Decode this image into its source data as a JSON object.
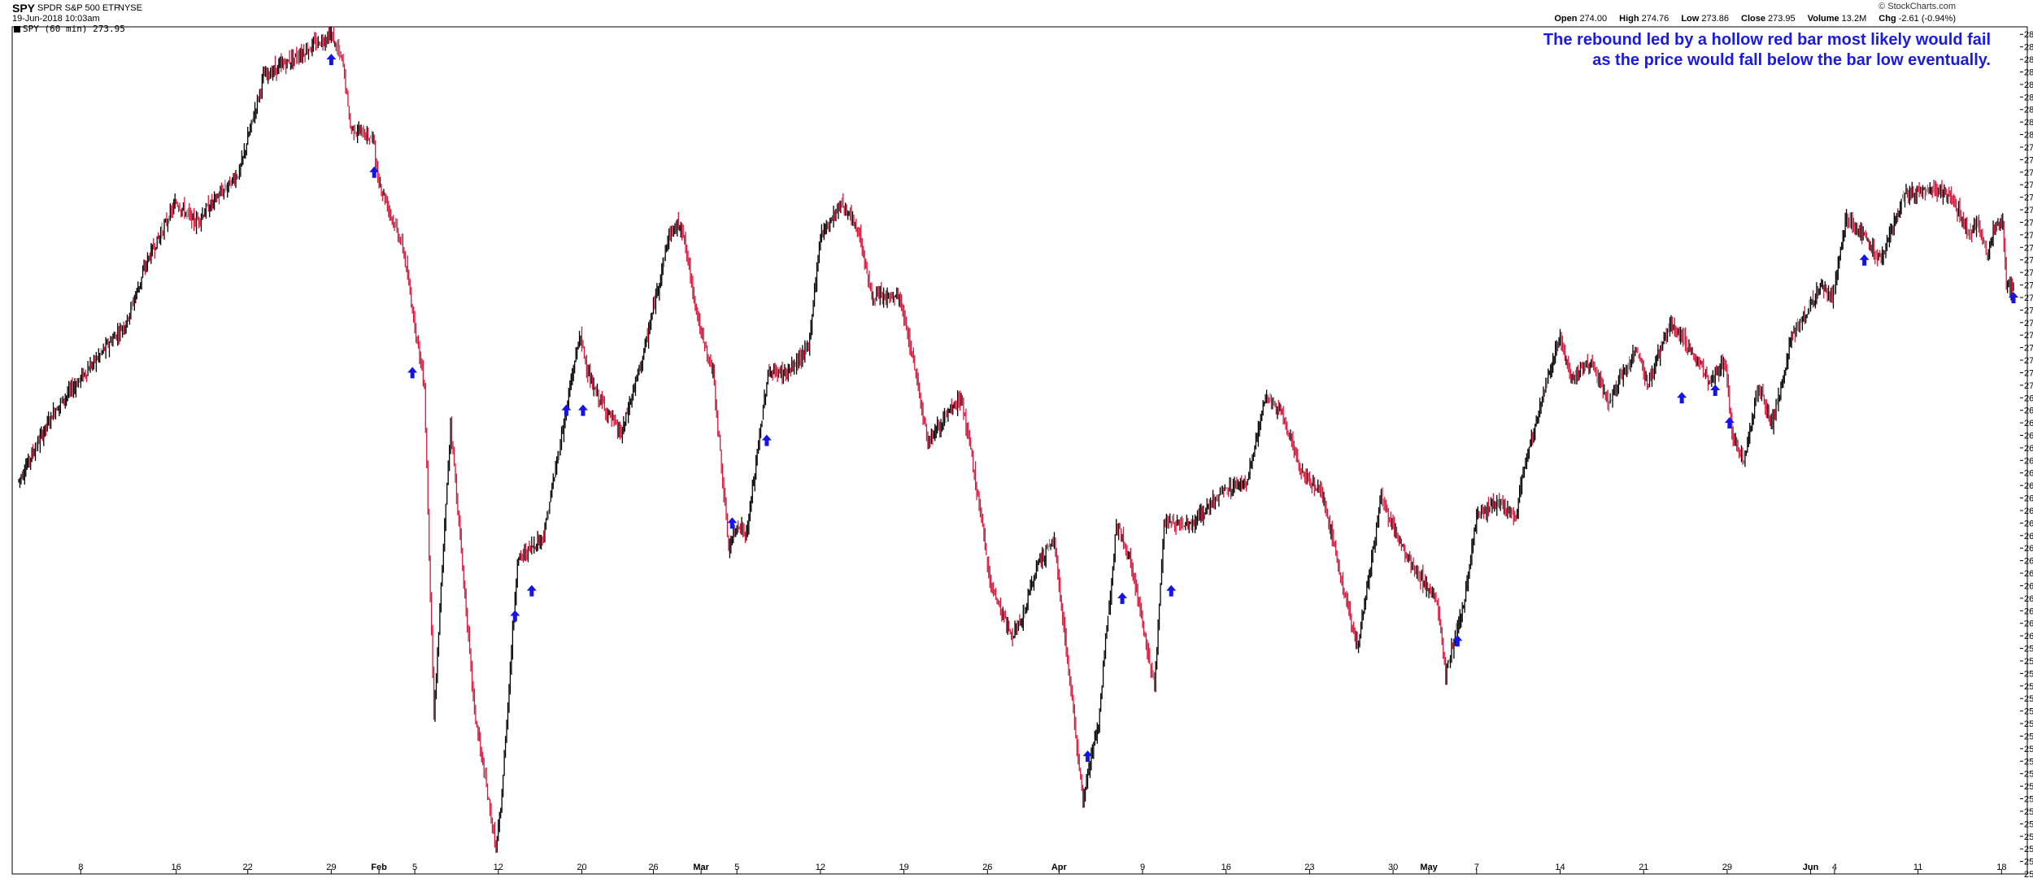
{
  "header": {
    "symbol": "SPY",
    "name": "SPDR S&P 500 ETF",
    "exchange": "NYSE",
    "datetime": "19-Jun-2018 10:03am",
    "legend": "SPY (60 min) 273.95",
    "credit": "© StockCharts.com",
    "open_label": "Open",
    "open": "274.00",
    "high_label": "High",
    "high": "274.76",
    "low_label": "Low",
    "low": "273.86",
    "close_label": "Close",
    "close": "273.95",
    "volume_label": "Volume",
    "volume": "13.2M",
    "chg_label": "Chg",
    "chg": "-2.61 (-0.94%)"
  },
  "annotation": "The rebound led by a hollow red bar most likely would fail as the price would fall below the bar low eventually.",
  "colors": {
    "up": "#000000",
    "down": "#d6173b",
    "hollow": "#8c8c8c",
    "arrow": "#1414e6",
    "annotation": "#1a1ae6"
  },
  "chart_data": {
    "type": "line",
    "title": "",
    "xlabel": "",
    "ylabel": "",
    "ylim": [
      250.5,
      284.3
    ],
    "ytick_step": 0.5,
    "x_ticks": [
      {
        "label": "8",
        "i": 52,
        "month": false
      },
      {
        "label": "16",
        "i": 132,
        "month": false
      },
      {
        "label": "22",
        "i": 192,
        "month": false
      },
      {
        "label": "29",
        "i": 262,
        "month": false
      },
      {
        "label": "Feb",
        "i": 302,
        "month": true
      },
      {
        "label": "5",
        "i": 332,
        "month": false
      },
      {
        "label": "12",
        "i": 402,
        "month": false
      },
      {
        "label": "20",
        "i": 472,
        "month": false
      },
      {
        "label": "26",
        "i": 532,
        "month": false
      },
      {
        "label": "Mar",
        "i": 572,
        "month": true
      },
      {
        "label": "5",
        "i": 602,
        "month": false
      },
      {
        "label": "12",
        "i": 672,
        "month": false
      },
      {
        "label": "19",
        "i": 742,
        "month": false
      },
      {
        "label": "26",
        "i": 812,
        "month": false
      },
      {
        "label": "Apr",
        "i": 872,
        "month": true
      },
      {
        "label": "9",
        "i": 942,
        "month": false
      },
      {
        "label": "16",
        "i": 1012,
        "month": false
      },
      {
        "label": "23",
        "i": 1082,
        "month": false
      },
      {
        "label": "30",
        "i": 1152,
        "month": false
      },
      {
        "label": "May",
        "i": 1182,
        "month": true
      },
      {
        "label": "7",
        "i": 1222,
        "month": false
      },
      {
        "label": "14",
        "i": 1292,
        "month": false
      },
      {
        "label": "21",
        "i": 1362,
        "month": false
      },
      {
        "label": "29",
        "i": 1432,
        "month": false
      },
      {
        "label": "Jun",
        "i": 1502,
        "month": true
      },
      {
        "label": "4",
        "i": 1522,
        "month": false
      },
      {
        "label": "11",
        "i": 1592,
        "month": false
      },
      {
        "label": "18",
        "i": 1662,
        "month": false
      }
    ],
    "x_total": 1672,
    "anchors": [
      [
        0,
        266.2
      ],
      [
        30,
        269.0
      ],
      [
        90,
        272.5
      ],
      [
        108,
        275.0
      ],
      [
        132,
        277.3
      ],
      [
        148,
        276.5
      ],
      [
        185,
        278.5
      ],
      [
        205,
        282.3
      ],
      [
        262,
        284.0
      ],
      [
        272,
        282.8
      ],
      [
        278,
        280.3
      ],
      [
        298,
        279.8
      ],
      [
        300,
        278.4
      ],
      [
        322,
        275.5
      ],
      [
        340,
        270.0
      ],
      [
        348,
        256.8
      ],
      [
        362,
        268.5
      ],
      [
        382,
        257.0
      ],
      [
        400,
        251.5
      ],
      [
        404,
        253.0
      ],
      [
        418,
        263.0
      ],
      [
        440,
        264.0
      ],
      [
        455,
        268.0
      ],
      [
        470,
        272.0
      ],
      [
        480,
        270.0
      ],
      [
        505,
        268.0
      ],
      [
        525,
        271.5
      ],
      [
        545,
        276.0
      ],
      [
        555,
        276.5
      ],
      [
        572,
        272.0
      ],
      [
        582,
        270.5
      ],
      [
        595,
        263.5
      ],
      [
        603,
        264.5
      ],
      [
        610,
        264.0
      ],
      [
        628,
        270.5
      ],
      [
        645,
        270.5
      ],
      [
        662,
        271.5
      ],
      [
        672,
        276.0
      ],
      [
        690,
        277.3
      ],
      [
        705,
        276.0
      ],
      [
        715,
        273.5
      ],
      [
        738,
        273.5
      ],
      [
        750,
        271.0
      ],
      [
        762,
        267.8
      ],
      [
        790,
        269.5
      ],
      [
        800,
        266.8
      ],
      [
        815,
        262.0
      ],
      [
        832,
        260.0
      ],
      [
        840,
        260.5
      ],
      [
        855,
        263.0
      ],
      [
        868,
        263.8
      ],
      [
        878,
        259.5
      ],
      [
        892,
        253.5
      ],
      [
        905,
        256.5
      ],
      [
        920,
        264.5
      ],
      [
        932,
        263.0
      ],
      [
        952,
        258.0
      ],
      [
        960,
        264.5
      ],
      [
        985,
        264.5
      ],
      [
        1010,
        265.8
      ],
      [
        1030,
        266.2
      ],
      [
        1045,
        269.5
      ],
      [
        1060,
        268.8
      ],
      [
        1075,
        266.5
      ],
      [
        1092,
        265.8
      ],
      [
        1110,
        262.0
      ],
      [
        1122,
        259.5
      ],
      [
        1142,
        265.5
      ],
      [
        1160,
        263.5
      ],
      [
        1172,
        262.5
      ],
      [
        1188,
        261.5
      ],
      [
        1196,
        258.5
      ],
      [
        1212,
        261.5
      ],
      [
        1222,
        264.8
      ],
      [
        1240,
        265.3
      ],
      [
        1255,
        264.8
      ],
      [
        1262,
        266.8
      ],
      [
        1280,
        270.0
      ],
      [
        1292,
        272.0
      ],
      [
        1300,
        270.3
      ],
      [
        1318,
        271.0
      ],
      [
        1332,
        269.2
      ],
      [
        1340,
        270.0
      ],
      [
        1355,
        271.5
      ],
      [
        1365,
        270.0
      ],
      [
        1385,
        272.5
      ],
      [
        1400,
        271.5
      ],
      [
        1410,
        270.8
      ],
      [
        1418,
        270.0
      ],
      [
        1430,
        271.0
      ],
      [
        1436,
        268.0
      ],
      [
        1446,
        267.0
      ],
      [
        1458,
        270.0
      ],
      [
        1470,
        268.5
      ],
      [
        1478,
        270.0
      ],
      [
        1486,
        272.0
      ],
      [
        1500,
        273.0
      ],
      [
        1510,
        274.0
      ],
      [
        1520,
        273.5
      ],
      [
        1532,
        276.8
      ],
      [
        1545,
        276.0
      ],
      [
        1560,
        275.0
      ],
      [
        1580,
        277.5
      ],
      [
        1600,
        277.8
      ],
      [
        1620,
        277.5
      ],
      [
        1635,
        276.0
      ],
      [
        1642,
        276.5
      ],
      [
        1650,
        275.2
      ],
      [
        1656,
        276.3
      ],
      [
        1663,
        276.5
      ],
      [
        1666,
        274.0
      ],
      [
        1671,
        273.95
      ]
    ],
    "arrows": [
      {
        "i": 262,
        "v": 283.0
      },
      {
        "i": 298,
        "v": 278.5
      },
      {
        "i": 330,
        "v": 270.5
      },
      {
        "i": 416,
        "v": 260.8
      },
      {
        "i": 430,
        "v": 261.8
      },
      {
        "i": 459,
        "v": 269.0
      },
      {
        "i": 473,
        "v": 269.0
      },
      {
        "i": 598,
        "v": 264.5
      },
      {
        "i": 627,
        "v": 267.8
      },
      {
        "i": 896,
        "v": 255.2
      },
      {
        "i": 925,
        "v": 261.5
      },
      {
        "i": 966,
        "v": 261.8
      },
      {
        "i": 1206,
        "v": 259.8
      },
      {
        "i": 1394,
        "v": 269.5
      },
      {
        "i": 1422,
        "v": 269.8
      },
      {
        "i": 1434,
        "v": 268.5
      },
      {
        "i": 1547,
        "v": 275.0
      },
      {
        "i": 1672,
        "v": 273.5
      }
    ]
  }
}
